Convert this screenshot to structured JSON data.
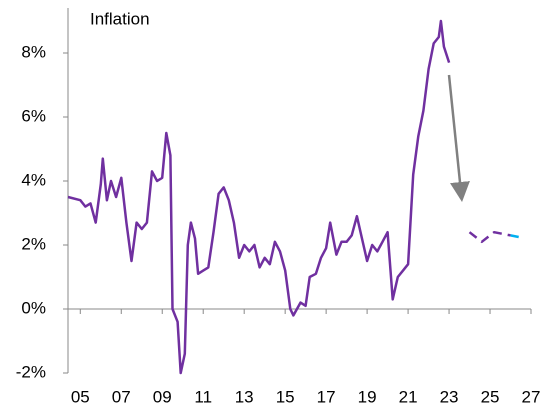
{
  "chart_data": {
    "type": "line",
    "title": "Inflation",
    "xlim": [
      2004.4,
      2027
    ],
    "ylim": [
      -2,
      9
    ],
    "xticks": [
      {
        "value": 2005,
        "label": "05"
      },
      {
        "value": 2007,
        "label": "07"
      },
      {
        "value": 2009,
        "label": "09"
      },
      {
        "value": 2011,
        "label": "11"
      },
      {
        "value": 2013,
        "label": "13"
      },
      {
        "value": 2015,
        "label": "15"
      },
      {
        "value": 2017,
        "label": "17"
      },
      {
        "value": 2019,
        "label": "19"
      },
      {
        "value": 2021,
        "label": "21"
      },
      {
        "value": 2023,
        "label": "23"
      },
      {
        "value": 2025,
        "label": "25"
      },
      {
        "value": 2027,
        "label": "27"
      }
    ],
    "yticks": [
      {
        "value": -2,
        "label": "-2%"
      },
      {
        "value": 0,
        "label": "0%"
      },
      {
        "value": 2,
        "label": "2%"
      },
      {
        "value": 4,
        "label": "4%"
      },
      {
        "value": 6,
        "label": "6%"
      },
      {
        "value": 8,
        "label": "8%"
      }
    ],
    "series": [
      {
        "color": "#7030a0",
        "dashed": false,
        "x": [
          2004.4,
          2005.0,
          2005.25,
          2005.5,
          2005.75,
          2006.0,
          2006.1,
          2006.3,
          2006.5,
          2006.75,
          2007.0,
          2007.25,
          2007.5,
          2007.75,
          2008.0,
          2008.25,
          2008.5,
          2008.75,
          2009.0,
          2009.2,
          2009.4,
          2009.5,
          2009.75,
          2009.9,
          2010.1,
          2010.25,
          2010.4,
          2010.6,
          2010.75,
          2011.0,
          2011.25,
          2011.5,
          2011.75,
          2012.0,
          2012.25,
          2012.5,
          2012.75,
          2013.0,
          2013.25,
          2013.5,
          2013.75,
          2014.0,
          2014.25,
          2014.5,
          2014.75,
          2015.0,
          2015.25,
          2015.4,
          2015.75,
          2016.0,
          2016.2,
          2016.5,
          2016.75,
          2017.0,
          2017.2,
          2017.5,
          2017.75,
          2018.0,
          2018.25,
          2018.5,
          2018.75,
          2019.0,
          2019.25,
          2019.5,
          2019.75,
          2020.0,
          2020.25,
          2020.5,
          2020.75,
          2021.0,
          2021.25,
          2021.5,
          2021.75,
          2022.0,
          2022.25,
          2022.5,
          2022.6,
          2022.75,
          2023.0
        ],
        "values": [
          3.5,
          3.4,
          3.2,
          3.3,
          2.7,
          3.9,
          4.7,
          3.4,
          4.0,
          3.5,
          4.1,
          2.7,
          1.5,
          2.7,
          2.5,
          2.7,
          4.3,
          4.0,
          4.1,
          5.5,
          4.8,
          0.0,
          -0.4,
          -2.0,
          -1.4,
          2.0,
          2.7,
          2.2,
          1.1,
          1.2,
          1.3,
          2.4,
          3.6,
          3.8,
          3.4,
          2.7,
          1.6,
          2.0,
          1.8,
          2.0,
          1.3,
          1.6,
          1.4,
          2.1,
          1.8,
          1.2,
          0.0,
          -0.2,
          0.2,
          0.1,
          1.0,
          1.1,
          1.6,
          1.9,
          2.7,
          1.7,
          2.1,
          2.1,
          2.3,
          2.9,
          2.2,
          1.5,
          2.0,
          1.8,
          2.1,
          2.4,
          0.3,
          1.0,
          1.2,
          1.4,
          4.2,
          5.4,
          6.2,
          7.5,
          8.3,
          8.5,
          9.0,
          8.2,
          7.7
        ]
      },
      {
        "color": "#7030a0",
        "dashed": true,
        "x": [
          2024.0,
          2024.6,
          2025.2,
          2026.0
        ],
        "values": [
          2.4,
          2.1,
          2.4,
          2.3
        ]
      },
      {
        "color": "#00b0f0",
        "dashed": true,
        "x": [
          2026.0,
          2026.4
        ],
        "values": [
          2.3,
          2.25
        ]
      }
    ]
  }
}
